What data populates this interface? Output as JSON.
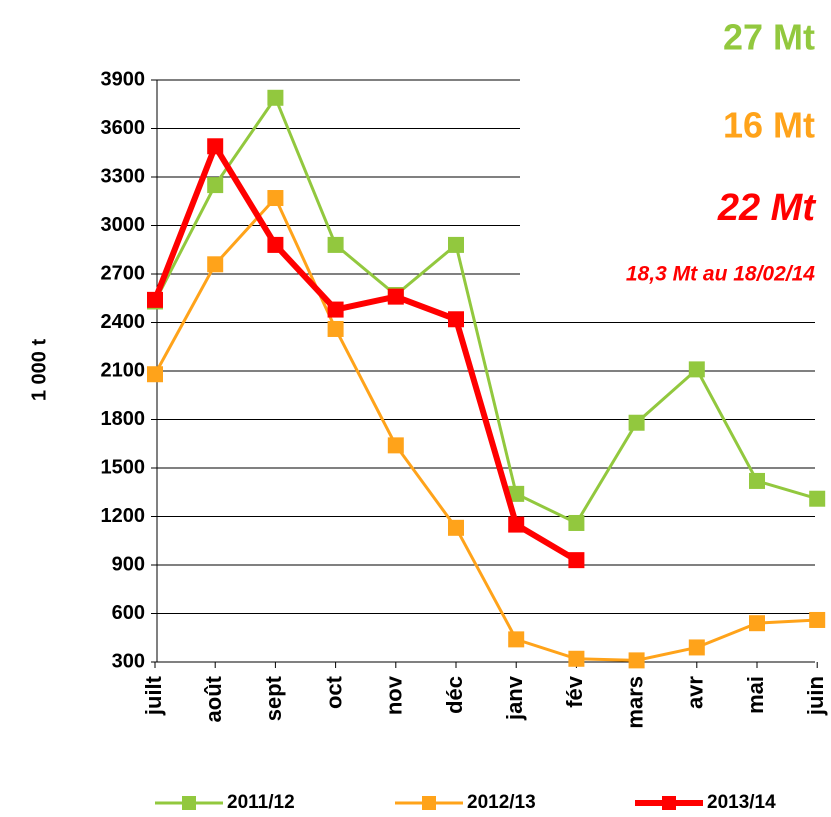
{
  "chart_data": {
    "type": "line",
    "y_label": "1 000 t",
    "categories": [
      "juilt",
      "août",
      "sept",
      "oct",
      "nov",
      "déc",
      "janv",
      "fév",
      "mars",
      "avr",
      "mai",
      "juin"
    ],
    "series": [
      {
        "name": "2011/12",
        "color": "#92c83e",
        "values": [
          2530,
          3250,
          3790,
          2880,
          2570,
          2880,
          1340,
          1160,
          1780,
          2110,
          1420,
          1310
        ]
      },
      {
        "name": "2012/13",
        "color": "#ffa31a",
        "values": [
          2080,
          2760,
          3170,
          2360,
          1640,
          1130,
          440,
          320,
          310,
          390,
          540,
          560
        ]
      },
      {
        "name": "2013/14",
        "color": "#ff0000",
        "values": [
          2540,
          3490,
          2880,
          2480,
          2560,
          2420,
          1150,
          930,
          null,
          null,
          null,
          null
        ]
      }
    ],
    "ylim": [
      300,
      3900
    ],
    "yticks": [
      300,
      600,
      900,
      1200,
      1500,
      1800,
      2100,
      2400,
      2700,
      3000,
      3300,
      3600,
      3900
    ],
    "grid": true,
    "annotations": [
      {
        "text": "27 Mt",
        "color": "#92c83e"
      },
      {
        "text": "16 Mt",
        "color": "#ffa31a"
      },
      {
        "text": "22 Mt",
        "color": "#ff0000"
      },
      {
        "text": "18,3 Mt au 18/02/14",
        "color": "#ff0000"
      }
    ]
  }
}
